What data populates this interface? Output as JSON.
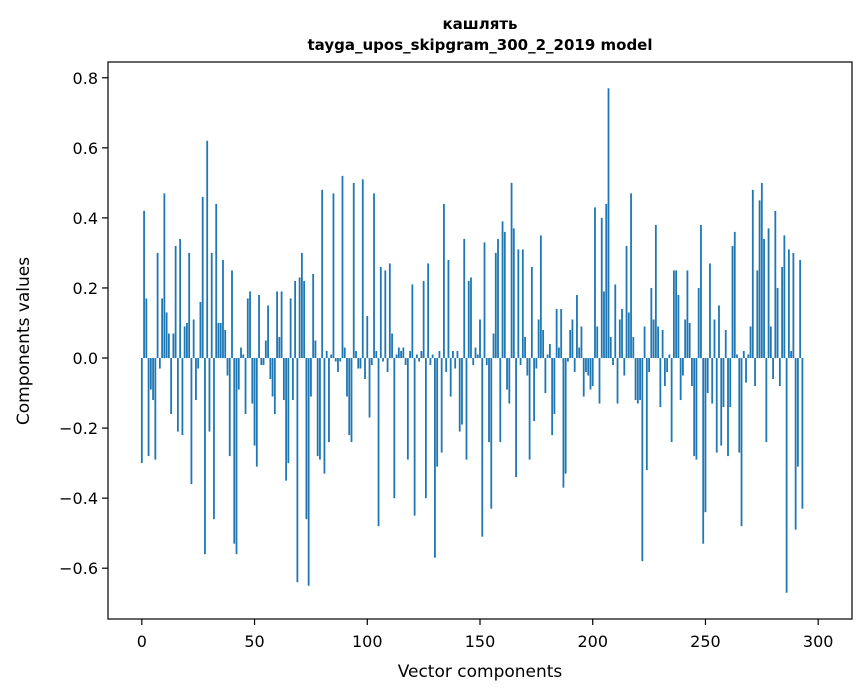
{
  "chart_data": {
    "type": "bar",
    "title_line1": "кашлять",
    "title_line2": "tayga_upos_skipgram_300_2_2019 model",
    "xlabel": "Vector components",
    "ylabel": "Components values",
    "xlim": [
      -15,
      315
    ],
    "ylim": [
      -0.745,
      0.845
    ],
    "xticks": [
      0,
      50,
      100,
      150,
      200,
      250,
      300
    ],
    "yticks": [
      -0.6,
      -0.4,
      -0.2,
      0.0,
      0.2,
      0.4,
      0.6,
      0.8
    ],
    "ytick_labels": [
      "−0.6",
      "−0.4",
      "−0.2",
      "0.0",
      "0.2",
      "0.4",
      "0.6",
      "0.8"
    ],
    "color": "#1f77b4",
    "values": [
      -0.3,
      0.42,
      0.17,
      -0.28,
      -0.09,
      -0.12,
      -0.29,
      0.3,
      -0.03,
      0.17,
      0.47,
      0.13,
      0.07,
      -0.16,
      0.07,
      0.32,
      -0.21,
      0.34,
      -0.22,
      0.09,
      0.1,
      0.3,
      -0.36,
      0.11,
      -0.12,
      -0.03,
      0.16,
      0.46,
      -0.56,
      0.62,
      -0.21,
      0.3,
      -0.46,
      0.44,
      0.1,
      0.1,
      0.28,
      0.08,
      -0.05,
      -0.28,
      0.25,
      -0.53,
      -0.56,
      -0.09,
      0.03,
      0.01,
      -0.16,
      0.17,
      0.19,
      -0.13,
      -0.25,
      -0.31,
      0.18,
      -0.02,
      -0.02,
      0.05,
      0.15,
      -0.06,
      -0.11,
      -0.16,
      0.19,
      0.06,
      0.19,
      -0.12,
      -0.35,
      -0.3,
      0.17,
      -0.12,
      0.22,
      -0.64,
      0.23,
      0.3,
      0.22,
      -0.46,
      -0.65,
      -0.11,
      0.24,
      0.05,
      -0.28,
      -0.29,
      0.48,
      -0.33,
      0.02,
      -0.24,
      0.01,
      0.47,
      -0.01,
      -0.04,
      -0.01,
      0.52,
      0.03,
      -0.11,
      -0.22,
      -0.24,
      0.5,
      0.02,
      -0.03,
      -0.03,
      0.51,
      -0.06,
      0.12,
      -0.17,
      -0.02,
      0.47,
      0.02,
      -0.48,
      0.26,
      -0.01,
      0.25,
      -0.04,
      0.27,
      0.07,
      -0.4,
      0.01,
      0.03,
      0.02,
      0.03,
      -0.02,
      -0.29,
      0.02,
      0.21,
      -0.45,
      0.01,
      -0.01,
      0.02,
      0.22,
      -0.4,
      0.27,
      -0.02,
      0.01,
      -0.57,
      -0.31,
      0.02,
      -0.27,
      0.44,
      -0.04,
      0.28,
      -0.11,
      0.02,
      -0.03,
      0.02,
      -0.21,
      -0.19,
      0.34,
      -0.29,
      0.22,
      0.23,
      -0.02,
      0.03,
      0.01,
      0.11,
      -0.51,
      0.33,
      -0.02,
      -0.24,
      -0.43,
      0.07,
      0.3,
      0.34,
      -0.24,
      0.39,
      0.36,
      -0.09,
      -0.13,
      0.5,
      0.37,
      -0.34,
      0.31,
      -0.02,
      0.31,
      0.06,
      -0.05,
      -0.29,
      0.26,
      -0.18,
      -0.03,
      0.11,
      0.35,
      0.08,
      -0.1,
      0.01,
      0.04,
      -0.22,
      -0.16,
      0.14,
      0.03,
      0.14,
      -0.37,
      -0.33,
      -0.01,
      0.08,
      0.11,
      -0.04,
      0.18,
      0.03,
      0.09,
      -0.11,
      -0.04,
      -0.05,
      -0.09,
      -0.08,
      0.43,
      0.09,
      -0.13,
      0.4,
      0.19,
      0.44,
      0.77,
      0.06,
      -0.02,
      0.21,
      -0.13,
      0.11,
      0.14,
      -0.05,
      0.32,
      0.13,
      0.47,
      0.06,
      -0.12,
      -0.13,
      -0.12,
      -0.58,
      0.09,
      -0.32,
      -0.04,
      0.2,
      0.11,
      0.38,
      0.09,
      -0.14,
      0.08,
      -0.08,
      -0.04,
      0.01,
      -0.24,
      0.25,
      0.25,
      0.18,
      -0.12,
      -0.05,
      0.11,
      0.25,
      0.1,
      -0.08,
      -0.28,
      -0.29,
      0.2,
      0.38,
      -0.53,
      -0.44,
      -0.1,
      0.27,
      -0.13,
      0.11,
      -0.27,
      0.15,
      -0.25,
      -0.14,
      0.08,
      -0.28,
      -0.14,
      0.32,
      0.36,
      0.01,
      -0.27,
      -0.48,
      0.02,
      -0.07,
      0.01,
      0.09,
      0.48,
      -0.08,
      0.25,
      0.45,
      0.5,
      0.34,
      -0.24,
      0.37,
      0.09,
      -0.06,
      0.42,
      0.2,
      -0.08,
      0.26,
      0.35,
      -0.67,
      0.31,
      0.02,
      0.3,
      -0.49,
      -0.31,
      0.28,
      -0.43
    ]
  }
}
